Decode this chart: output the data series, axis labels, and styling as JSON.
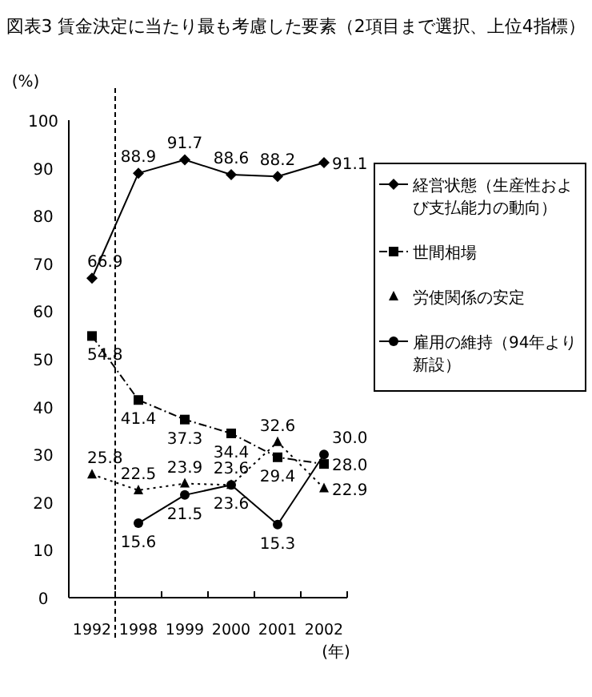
{
  "chart_data": {
    "type": "line",
    "title": "図表3 賃金決定に当たり最も考慮した要素（2項目まで選択、上位4指標）",
    "ylabel": "(%)",
    "xlabel": "(年)",
    "categories": [
      "1992",
      "1998",
      "1999",
      "2000",
      "2001",
      "2002"
    ],
    "ylim": [
      0,
      100
    ],
    "yticks": [
      0,
      10,
      20,
      30,
      40,
      50,
      60,
      70,
      80,
      90,
      100
    ],
    "series": [
      {
        "name": "経営状態（生産性および支払能力の動向）",
        "color": "#000000",
        "marker": "diamond",
        "line_style": "solid",
        "values": [
          66.9,
          88.9,
          91.7,
          88.6,
          88.2,
          91.1
        ],
        "value_labels": [
          "66.9",
          "88.9",
          "91.7",
          "88.6",
          "88.2",
          "91.1"
        ]
      },
      {
        "name": "世間相場",
        "color": "#000000",
        "marker": "square",
        "line_style": "dashed",
        "values": [
          54.8,
          41.4,
          37.3,
          34.4,
          29.4,
          28.0
        ],
        "value_labels": [
          "54.8",
          "41.4",
          "37.3",
          "34.4",
          "29.4",
          "28.0"
        ]
      },
      {
        "name": "労使関係の安定",
        "color": "#000000",
        "marker": "triangle",
        "line_style": "dotted",
        "values": [
          25.8,
          22.5,
          23.9,
          23.6,
          32.6,
          22.9
        ],
        "value_labels": [
          "25.8",
          "22.5",
          "23.9",
          "23.6",
          "32.6",
          "22.9"
        ]
      },
      {
        "name": "雇用の維持（94年より新設）",
        "color": "#000000",
        "marker": "circle",
        "line_style": "solid",
        "values": [
          null,
          15.6,
          21.5,
          23.6,
          15.3,
          30.0
        ],
        "value_labels": [
          null,
          "15.6",
          "21.5",
          "23.6",
          "15.3",
          "30.0"
        ]
      }
    ],
    "legend": "right",
    "grid": false
  }
}
